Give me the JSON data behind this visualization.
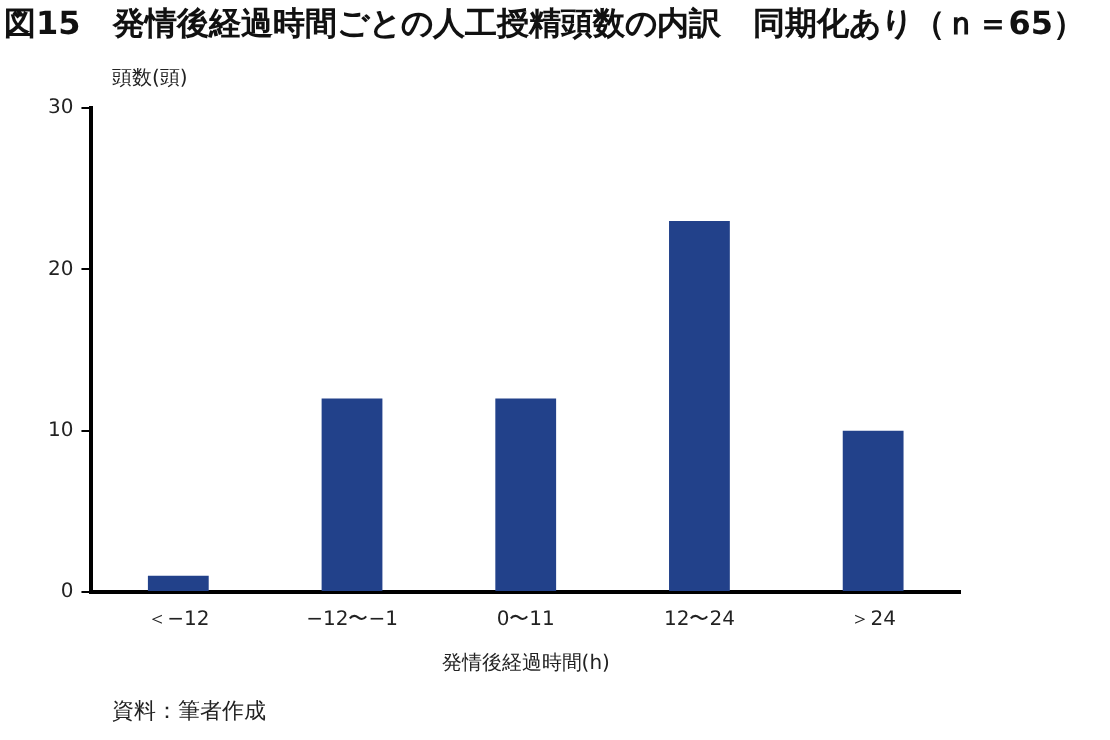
{
  "chart_data": {
    "type": "bar",
    "title": "図15　発情後経過時間ごとの人工授精頭数の内訳　同期化あり（ｎ＝65）",
    "xlabel": "発情後経過時間(h)",
    "ylabel": "頭数(頭)",
    "categories": [
      "＜−12",
      "−12〜−1",
      "0〜11",
      "12〜24",
      "＞24"
    ],
    "values": [
      1,
      12,
      12,
      23,
      10
    ],
    "color": "#22418a",
    "ylim": [
      0,
      30
    ],
    "yticks": [
      0,
      10,
      20,
      30
    ],
    "grid": false,
    "annotations": [
      "資料：筆者作成"
    ]
  }
}
